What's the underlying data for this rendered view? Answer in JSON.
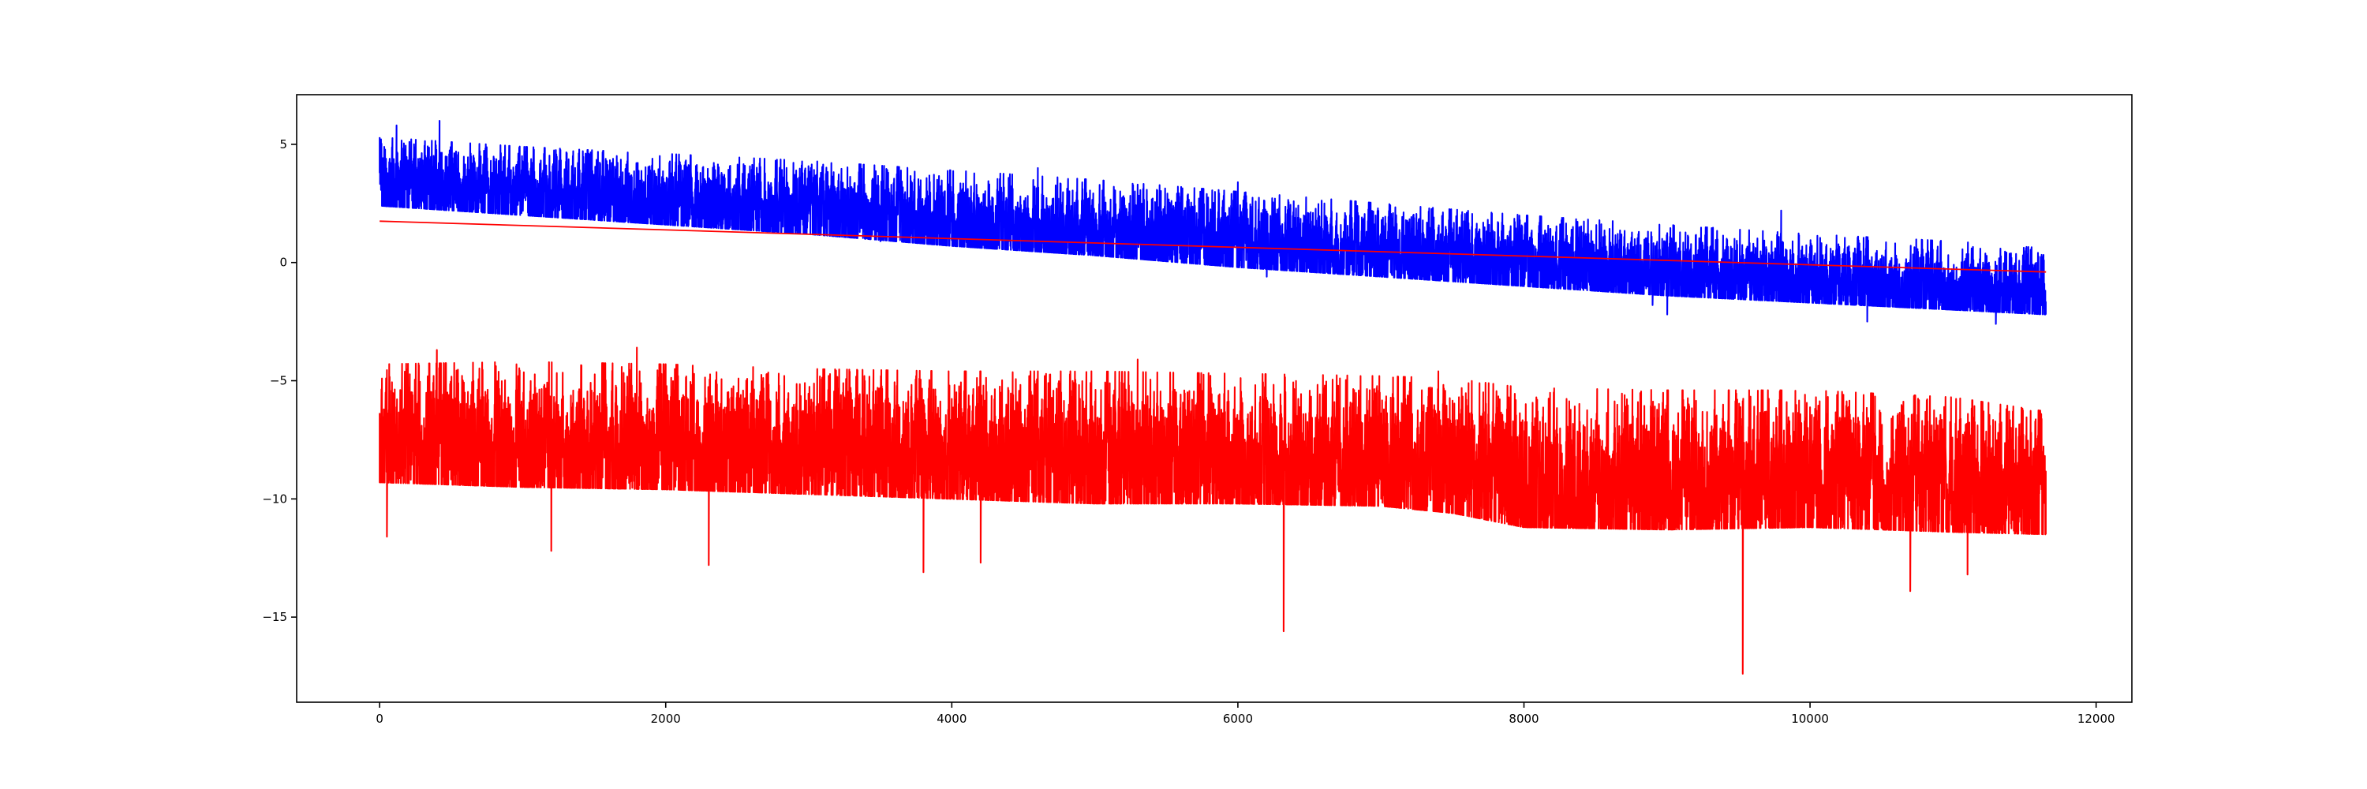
{
  "chart_data": {
    "type": "line",
    "title": "",
    "xlabel": "",
    "ylabel": "",
    "xlim": [
      -580,
      12250
    ],
    "ylim": [
      -18.6,
      7.1
    ],
    "x_ticks": [
      0,
      2000,
      4000,
      6000,
      8000,
      10000,
      12000
    ],
    "y_ticks": [
      5,
      0,
      -5,
      -10,
      -15
    ],
    "x_tick_labels": [
      "0",
      "2000",
      "4000",
      "6000",
      "8000",
      "10000",
      "12000"
    ],
    "y_tick_labels": [
      "5",
      "0",
      "−5",
      "−10",
      "−15"
    ],
    "grid": false,
    "legend": "none",
    "series": [
      {
        "color": "#0000ff",
        "style": "noisy",
        "x": [
          0,
          1000,
          2000,
          3000,
          4000,
          5000,
          6000,
          7000,
          8000,
          9000,
          10000,
          11000,
          11650
        ],
        "upper": [
          5.3,
          4.9,
          4.6,
          4.3,
          3.9,
          3.5,
          3.0,
          2.5,
          2.0,
          1.6,
          1.2,
          0.9,
          0.6
        ],
        "lower": [
          2.4,
          2.0,
          1.6,
          1.2,
          0.7,
          0.3,
          -0.2,
          -0.6,
          -1.0,
          -1.4,
          -1.7,
          -2.0,
          -2.2
        ],
        "spikes_max": [
          [
            120,
            5.8
          ],
          [
            420,
            6.0
          ],
          [
            4600,
            4.0
          ],
          [
            5300,
            3.3
          ],
          [
            6000,
            3.4
          ],
          [
            9800,
            2.2
          ]
        ],
        "spikes_min": [
          [
            3500,
            0.9
          ],
          [
            6200,
            -0.6
          ],
          [
            8900,
            -1.8
          ],
          [
            9000,
            -2.2
          ],
          [
            10400,
            -2.5
          ],
          [
            11300,
            -2.6
          ]
        ]
      },
      {
        "color": "#ff0000",
        "style": "noisy",
        "x": [
          0,
          1000,
          2000,
          3000,
          4000,
          5000,
          6000,
          7000,
          7500,
          8000,
          9000,
          10000,
          11000,
          11650
        ],
        "upper": [
          -4.3,
          -4.2,
          -4.3,
          -4.5,
          -4.6,
          -4.6,
          -4.7,
          -4.8,
          -4.9,
          -5.3,
          -5.4,
          -5.4,
          -5.7,
          -6.3
        ],
        "lower": [
          -9.3,
          -9.5,
          -9.6,
          -9.8,
          -10.0,
          -10.2,
          -10.2,
          -10.3,
          -10.6,
          -11.2,
          -11.3,
          -11.2,
          -11.4,
          -11.5
        ],
        "spikes_max": [
          [
            400,
            -3.7
          ],
          [
            1800,
            -3.6
          ],
          [
            5300,
            -4.1
          ],
          [
            7400,
            -4.6
          ]
        ],
        "spikes_min": [
          [
            50,
            -11.6
          ],
          [
            1200,
            -12.2
          ],
          [
            2300,
            -12.8
          ],
          [
            3800,
            -13.1
          ],
          [
            4200,
            -12.7
          ],
          [
            6320,
            -15.6
          ],
          [
            9530,
            -17.4
          ],
          [
            10700,
            -13.9
          ],
          [
            11100,
            -13.2
          ]
        ]
      },
      {
        "color": "#ff0000",
        "style": "trend",
        "x": [
          0,
          11650
        ],
        "values": [
          1.75,
          -0.4
        ]
      }
    ]
  }
}
